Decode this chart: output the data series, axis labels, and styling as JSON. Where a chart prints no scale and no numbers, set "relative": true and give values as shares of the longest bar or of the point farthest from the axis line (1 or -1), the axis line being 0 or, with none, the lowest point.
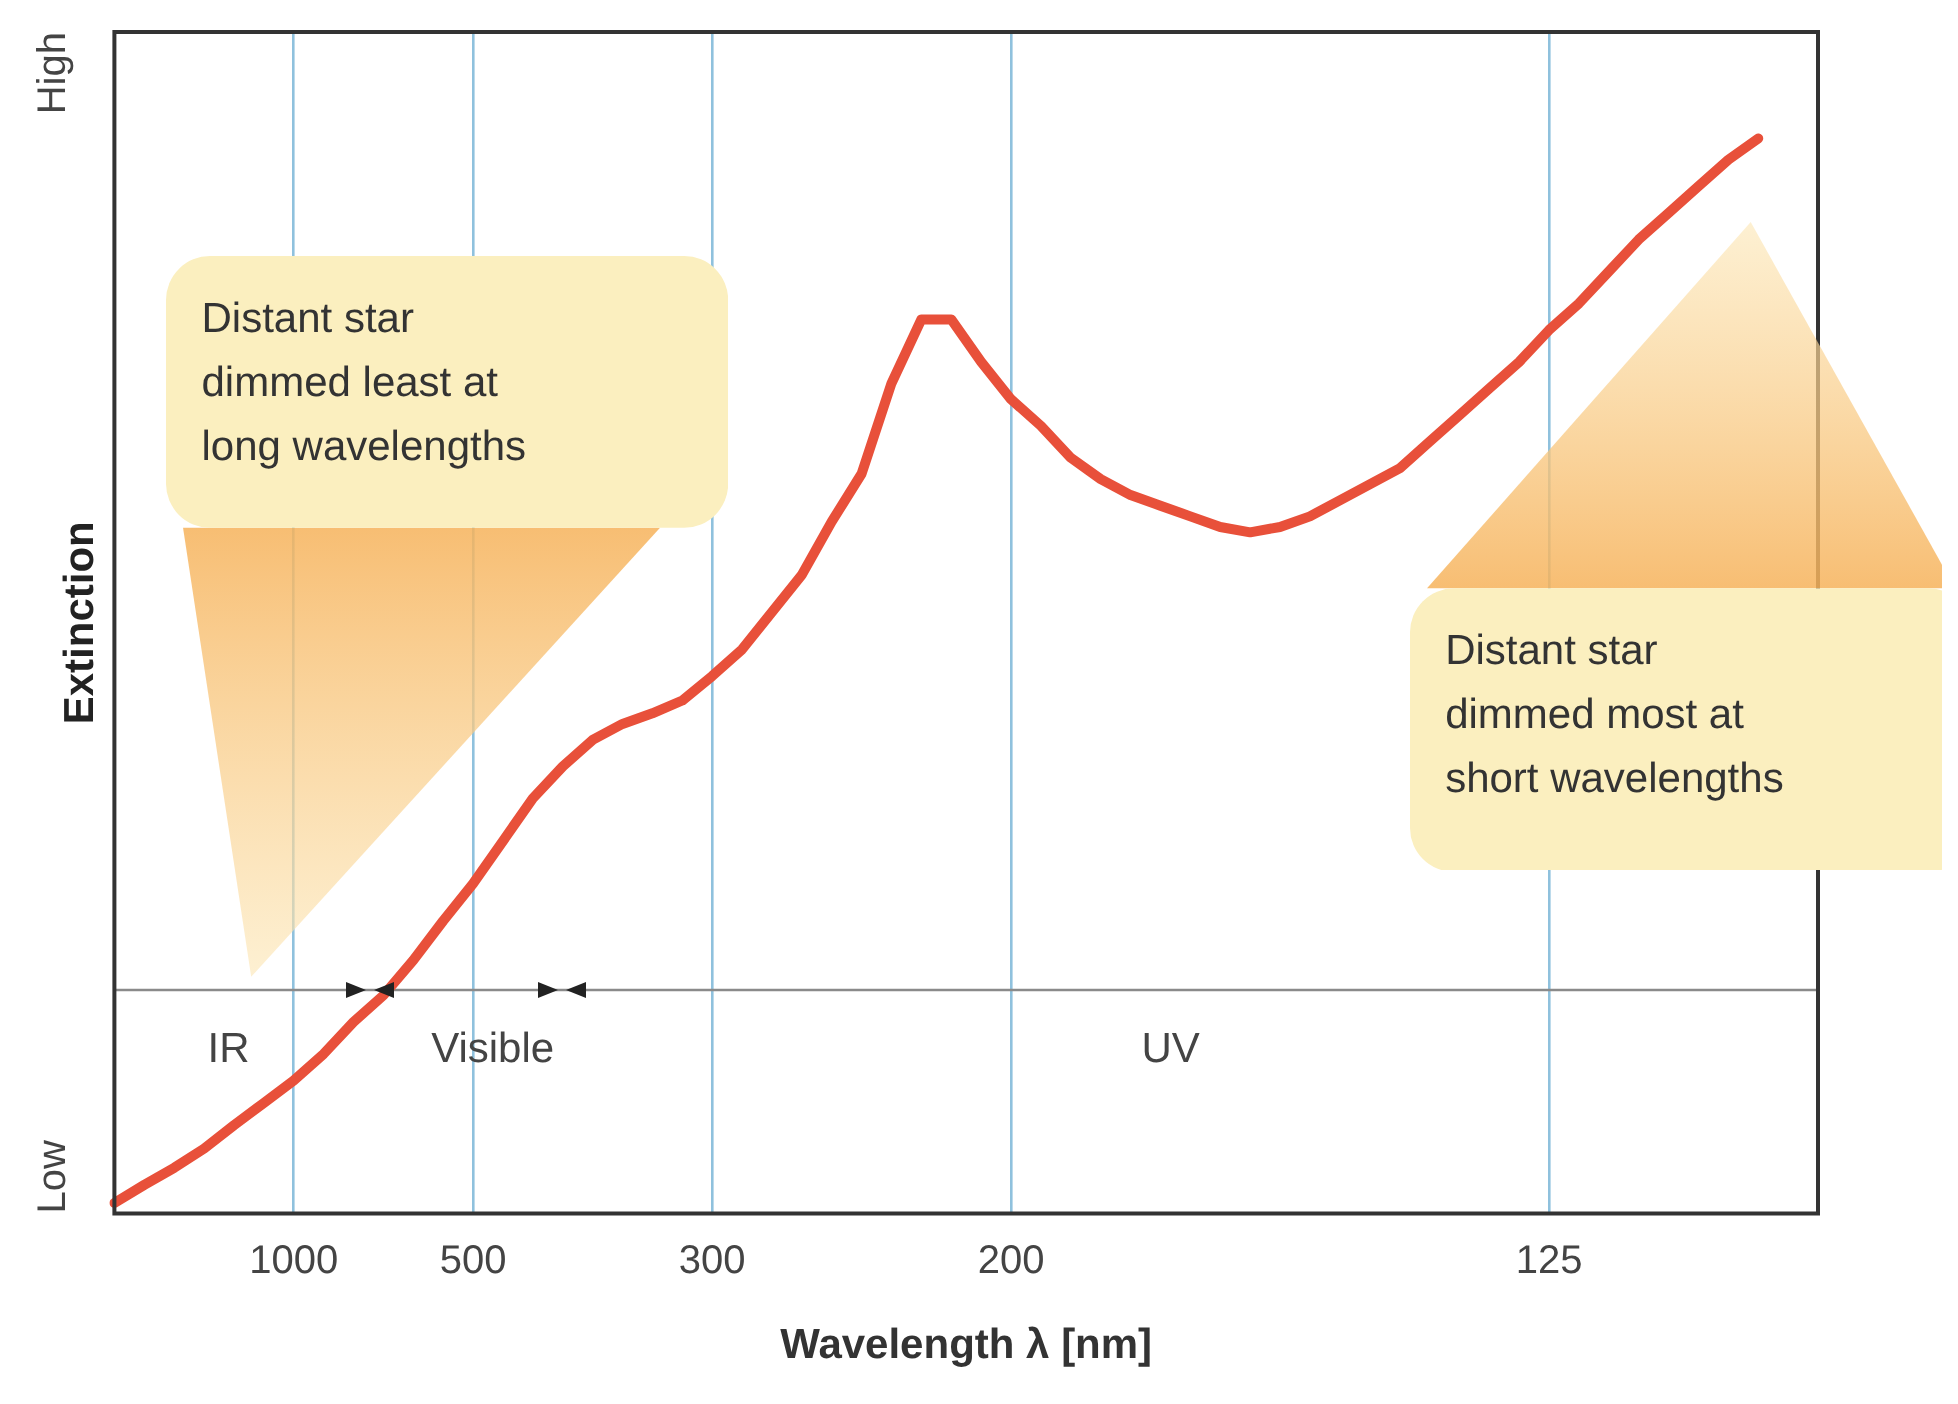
{
  "chart_data": {
    "type": "line",
    "xlabel": "Wavelength λ [nm]",
    "ylabel": "Extinction",
    "relative": true,
    "categories": [
      null,
      null,
      null,
      null,
      null,
      null,
      "1000",
      null,
      null,
      null,
      null,
      null,
      "500",
      null,
      null,
      null,
      null,
      null,
      null,
      null,
      "300",
      null,
      null,
      null,
      null,
      null,
      null,
      null,
      null,
      null,
      "200",
      null,
      null,
      null,
      null,
      null,
      null,
      null,
      null,
      null,
      null,
      null,
      null,
      null,
      null,
      null,
      null,
      null,
      "125",
      null,
      null,
      null,
      null,
      null,
      null,
      null,
      null,
      null
    ],
    "series": [
      {
        "color": "#e8503a",
        "values": [
          0,
          0.017,
          0.033,
          0.051,
          0.073,
          0.094,
          0.115,
          0.14,
          0.17,
          0.195,
          0.228,
          0.265,
          0.3,
          0.34,
          0.38,
          0.41,
          0.435,
          0.45,
          0.46,
          0.472,
          0.495,
          0.52,
          0.555,
          0.59,
          0.64,
          0.685,
          0.77,
          0.83,
          0.83,
          0.79,
          0.755,
          0.73,
          0.7,
          0.68,
          0.665,
          0.655,
          0.645,
          0.635,
          0.63,
          0.635,
          0.645,
          0.66,
          0.675,
          0.69,
          0.715,
          0.74,
          0.765,
          0.79,
          0.82,
          0.845,
          0.875,
          0.905,
          0.93,
          0.955,
          0.98,
          1,
          null,
          null
        ]
      }
    ],
    "grid": "x",
    "marker": "none",
    "line_style": "solid",
    "ref_lines": [
      {
        "axis": "y",
        "value": 0.2,
        "color": "#8a8a8a"
      }
    ],
    "annotations": [
      "Low",
      "High",
      "Distant star\ndimmed least at\nlong wavelengths",
      "Distant star\ndimmed most at\nshort wavelengths",
      "IR",
      "Visible",
      "UV"
    ]
  }
}
